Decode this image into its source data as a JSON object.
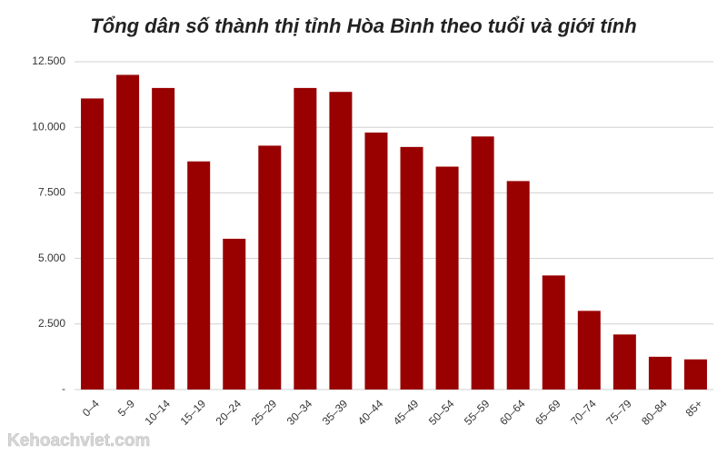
{
  "chart_data": {
    "type": "bar",
    "title": "Tổng dân số thành thị tỉnh Hòa Bình theo tuổi và giới tính",
    "categories": [
      "0–4",
      "5–9",
      "10–14",
      "15–19",
      "20–24",
      "25–29",
      "30–34",
      "35–39",
      "40–44",
      "45–49",
      "50–54",
      "55–59",
      "60–64",
      "65–69",
      "70–74",
      "75–79",
      "80–84",
      "85+"
    ],
    "values": [
      11100,
      12000,
      11500,
      8700,
      5750,
      9300,
      11500,
      11350,
      9800,
      9250,
      8500,
      9650,
      7950,
      4350,
      3000,
      2100,
      1250,
      1150
    ],
    "color": "#990000",
    "ylim": [
      0,
      12500
    ],
    "yticks": [
      {
        "value": 0,
        "label": "-"
      },
      {
        "value": 2500,
        "label": "2.500"
      },
      {
        "value": 5000,
        "label": "5.000"
      },
      {
        "value": 7500,
        "label": "7.500"
      },
      {
        "value": 10000,
        "label": "10.000"
      },
      {
        "value": 12500,
        "label": "12.500"
      }
    ],
    "grid": true
  },
  "watermark": "Kehoachviet.com"
}
